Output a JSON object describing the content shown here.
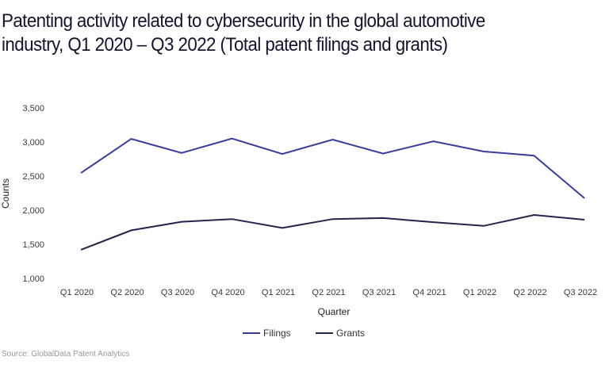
{
  "title": "Patenting activity related to cybersecurity in the global automotive industry, Q1 2020 – Q3 2022 (Total patent filings and grants)",
  "source": "Source: GlobalData Patent Analytics",
  "chart_data": {
    "type": "line",
    "title": "Patenting activity related to cybersecurity in the global automotive industry, Q1 2020 – Q3 2022 (Total patent filings and grants)",
    "xlabel": "Quarter",
    "ylabel": "Counts",
    "categories": [
      "Q1 2020",
      "Q2 2020",
      "Q3 2020",
      "Q4 2020",
      "Q1 2021",
      "Q2 2021",
      "Q3 2021",
      "Q4 2021",
      "Q1 2022",
      "Q2 2022",
      "Q3 2022"
    ],
    "ylim": [
      1000,
      3500
    ],
    "yticks": [
      1000,
      1500,
      2000,
      2500,
      3000,
      3500
    ],
    "ytick_labels": [
      "1,000",
      "1,500",
      "2,000",
      "2,500",
      "3,000",
      "3,500"
    ],
    "grid": false,
    "legend_position": "bottom-center",
    "series": [
      {
        "name": "Filings",
        "color": "#3a3d98",
        "values": [
          2545,
          3045,
          2840,
          3050,
          2825,
          3035,
          2830,
          3010,
          2860,
          2800,
          2175
        ]
      },
      {
        "name": "Grants",
        "color": "#25254a",
        "values": [
          1420,
          1705,
          1830,
          1870,
          1740,
          1870,
          1885,
          1825,
          1770,
          1930,
          1860
        ]
      }
    ]
  }
}
